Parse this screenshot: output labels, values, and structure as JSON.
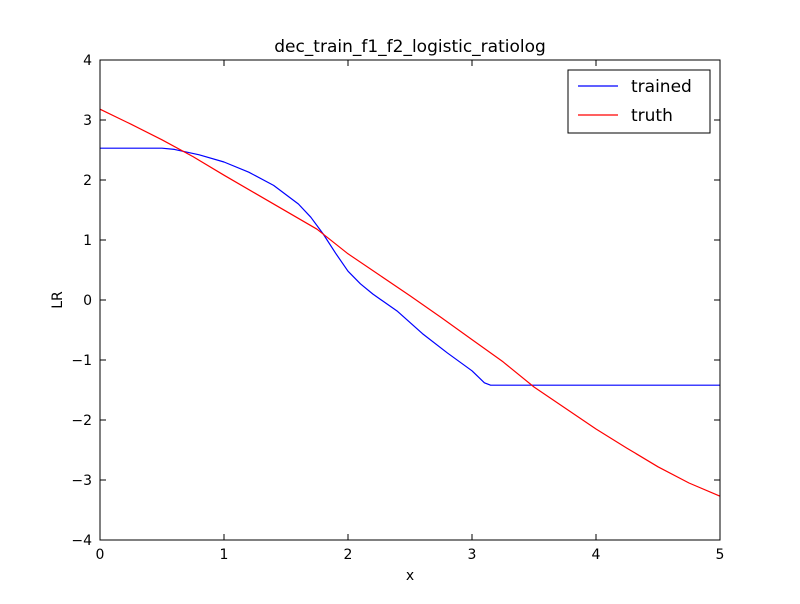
{
  "chart_data": {
    "type": "line",
    "title": "dec_train_f1_f2_logistic_ratiolog",
    "xlabel": "x",
    "ylabel": "LR",
    "xlim": [
      0,
      5
    ],
    "ylim": [
      -4,
      4
    ],
    "xticks": [
      0,
      1,
      2,
      3,
      4,
      5
    ],
    "yticks": [
      -4,
      -3,
      -2,
      -1,
      0,
      1,
      2,
      3,
      4
    ],
    "xtick_labels": [
      "0",
      "1",
      "2",
      "3",
      "4",
      "5"
    ],
    "ytick_labels": [
      "−4",
      "−3",
      "−2",
      "−1",
      "0",
      "1",
      "2",
      "3",
      "4"
    ],
    "grid": false,
    "legend_position": "top-right",
    "series": [
      {
        "name": "trained",
        "color": "#0000ff",
        "x": [
          0,
          0.5,
          0.6,
          0.8,
          1.0,
          1.2,
          1.4,
          1.6,
          1.7,
          1.8,
          1.9,
          2.0,
          2.1,
          2.2,
          2.4,
          2.6,
          2.8,
          3.0,
          3.1,
          3.15,
          3.5,
          4.0,
          4.5,
          5.0
        ],
        "y": [
          2.53,
          2.53,
          2.51,
          2.42,
          2.3,
          2.13,
          1.91,
          1.6,
          1.38,
          1.1,
          0.78,
          0.48,
          0.27,
          0.1,
          -0.19,
          -0.56,
          -0.88,
          -1.18,
          -1.38,
          -1.42,
          -1.42,
          -1.42,
          -1.42,
          -1.42
        ]
      },
      {
        "name": "truth",
        "color": "#ff0000",
        "x": [
          0,
          0.25,
          0.5,
          0.75,
          1.0,
          1.25,
          1.5,
          1.75,
          2.0,
          2.25,
          2.5,
          2.75,
          3.0,
          3.25,
          3.5,
          3.75,
          4.0,
          4.25,
          4.5,
          4.75,
          5.0
        ],
        "y": [
          3.18,
          2.93,
          2.67,
          2.39,
          2.08,
          1.78,
          1.48,
          1.18,
          0.77,
          0.42,
          0.07,
          -0.29,
          -0.66,
          -1.03,
          -1.45,
          -1.8,
          -2.15,
          -2.47,
          -2.78,
          -3.05,
          -3.27
        ]
      }
    ]
  }
}
